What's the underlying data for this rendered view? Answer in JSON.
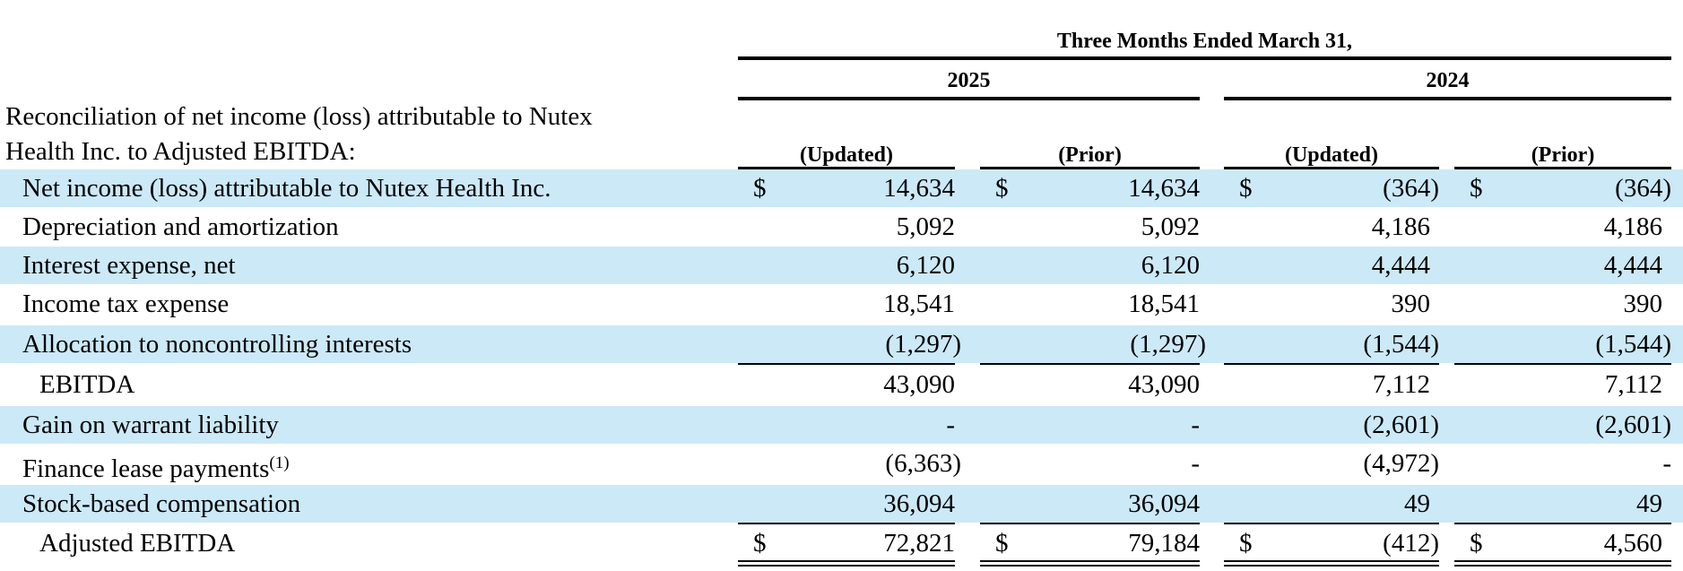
{
  "header": {
    "period": "Three Months Ended March 31,",
    "years": [
      "2025",
      "2024"
    ],
    "columns": [
      "(Updated)",
      "(Prior)",
      "(Updated)",
      "(Prior)"
    ]
  },
  "title_lines": [
    "Reconciliation of net income (loss) attributable to Nutex",
    "Health Inc. to Adjusted EBITDA:"
  ],
  "currency_symbol": "$",
  "rows": [
    {
      "label": "Net income (loss) attributable to Nutex Health Inc.",
      "values": [
        "14,634",
        "14,634",
        "(364)",
        "(364)"
      ],
      "shaded": true,
      "currency": true
    },
    {
      "label": "Depreciation and amortization",
      "values": [
        "5,092",
        "5,092",
        "4,186",
        "4,186"
      ],
      "shaded": false
    },
    {
      "label": "Interest expense, net",
      "values": [
        "6,120",
        "6,120",
        "4,444",
        "4,444"
      ],
      "shaded": true
    },
    {
      "label": "Income tax expense",
      "values": [
        "18,541",
        "18,541",
        "390",
        "390"
      ],
      "shaded": false
    },
    {
      "label": "Allocation to noncontrolling interests",
      "values": [
        "(1,297)",
        "(1,297)",
        "(1,544)",
        "(1,544)"
      ],
      "shaded": true
    },
    {
      "label": "EBITDA",
      "values": [
        "43,090",
        "43,090",
        "7,112",
        "7,112"
      ],
      "shaded": false,
      "indent": true
    },
    {
      "label": "Gain on warrant liability",
      "values": [
        "-",
        "-",
        "(2,601)",
        "(2,601)"
      ],
      "shaded": true
    },
    {
      "label": "Finance lease payments",
      "footnote": "(1)",
      "values": [
        "(6,363)",
        "-",
        "(4,972)",
        "-"
      ],
      "shaded": false
    },
    {
      "label": "Stock-based compensation",
      "values": [
        "36,094",
        "36,094",
        "49",
        "49"
      ],
      "shaded": true
    },
    {
      "label": "Adjusted EBITDA",
      "values": [
        "72,821",
        "79,184",
        "(412)",
        "4,560"
      ],
      "shaded": false,
      "indent": true,
      "currency": true
    }
  ]
}
